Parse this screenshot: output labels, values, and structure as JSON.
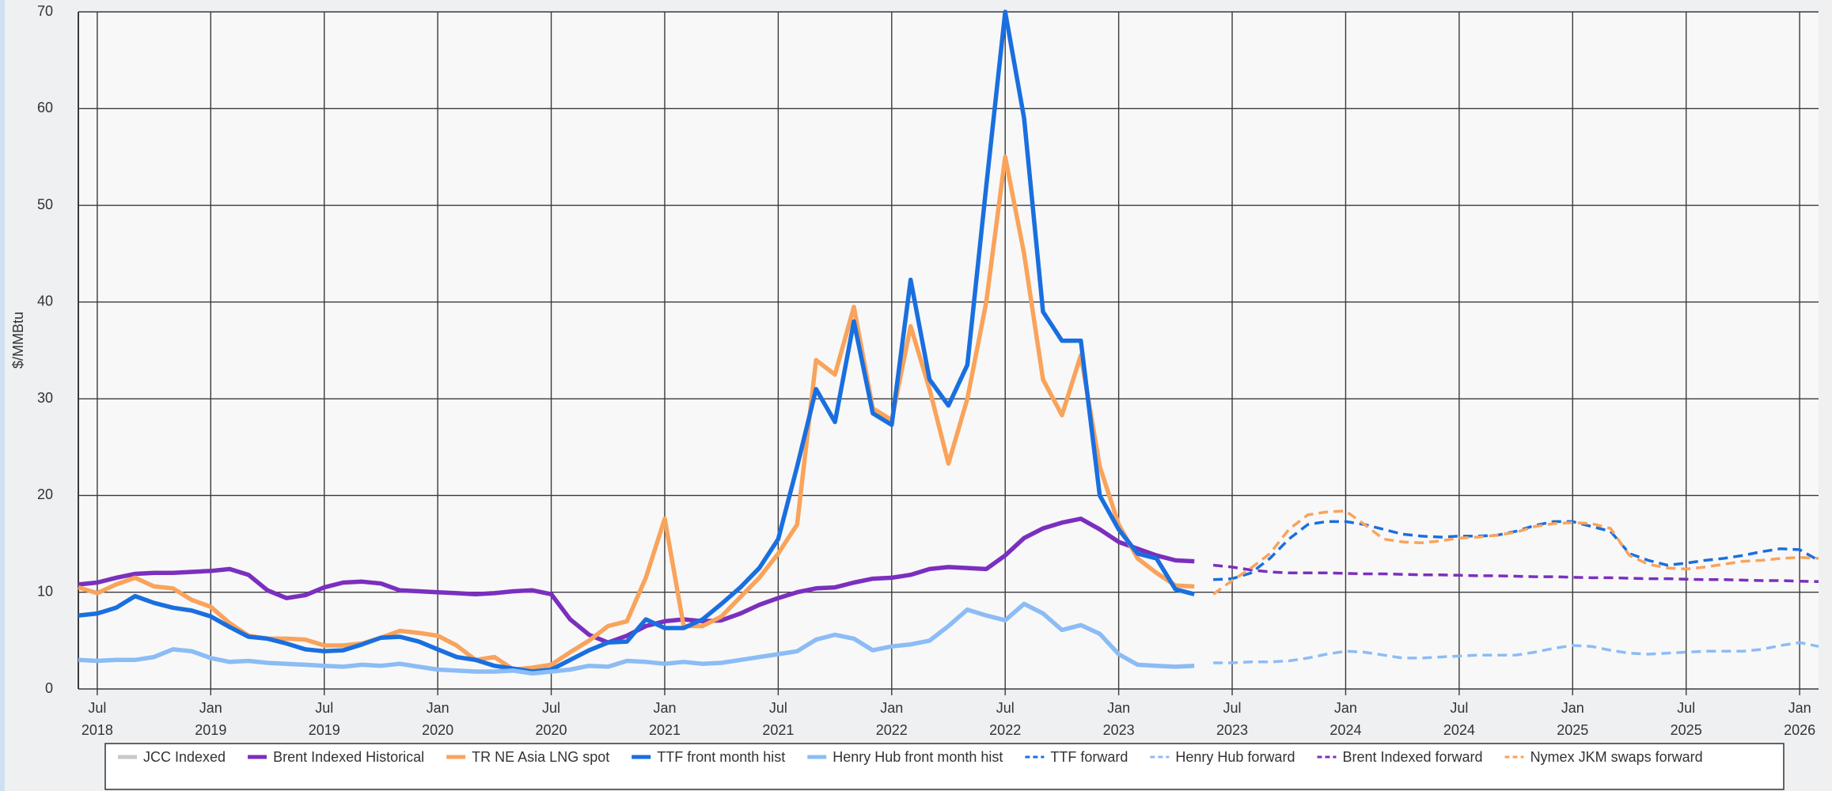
{
  "chart_data": {
    "type": "line",
    "y_label": "$/MMBtu",
    "x": [
      "2018-06",
      "2018-07",
      "2018-08",
      "2018-09",
      "2018-10",
      "2018-11",
      "2018-12",
      "2019-01",
      "2019-02",
      "2019-03",
      "2019-04",
      "2019-05",
      "2019-06",
      "2019-07",
      "2019-08",
      "2019-09",
      "2019-10",
      "2019-11",
      "2019-12",
      "2020-01",
      "2020-02",
      "2020-03",
      "2020-04",
      "2020-05",
      "2020-06",
      "2020-07",
      "2020-08",
      "2020-09",
      "2020-10",
      "2020-11",
      "2020-12",
      "2021-01",
      "2021-02",
      "2021-03",
      "2021-04",
      "2021-05",
      "2021-06",
      "2021-07",
      "2021-08",
      "2021-09",
      "2021-10",
      "2021-11",
      "2021-12",
      "2022-01",
      "2022-02",
      "2022-03",
      "2022-04",
      "2022-05",
      "2022-06",
      "2022-07",
      "2022-08",
      "2022-09",
      "2022-10",
      "2022-11",
      "2022-12",
      "2023-01",
      "2023-02",
      "2023-03",
      "2023-04",
      "2023-05",
      "2023-06",
      "2023-07",
      "2023-08",
      "2023-09",
      "2023-10",
      "2023-11",
      "2023-12",
      "2024-01",
      "2024-02",
      "2024-03",
      "2024-04",
      "2024-05",
      "2024-06",
      "2024-07",
      "2024-08",
      "2024-09",
      "2024-10",
      "2024-11",
      "2024-12",
      "2025-01",
      "2025-02",
      "2025-03",
      "2025-04",
      "2025-05",
      "2025-06",
      "2025-07",
      "2025-08",
      "2025-09",
      "2025-10",
      "2025-11",
      "2025-12",
      "2026-01",
      "2026-02"
    ],
    "xlim": [
      "2018-06",
      "2026-02"
    ],
    "xticks": [
      {
        "value": "2018-07",
        "label": [
          "Jul",
          "2018"
        ]
      },
      {
        "value": "2019-01",
        "label": [
          "Jan",
          "2019"
        ]
      },
      {
        "value": "2019-07",
        "label": [
          "Jul",
          "2019"
        ]
      },
      {
        "value": "2020-01",
        "label": [
          "Jan",
          "2020"
        ]
      },
      {
        "value": "2020-07",
        "label": [
          "Jul",
          "2020"
        ]
      },
      {
        "value": "2021-01",
        "label": [
          "Jan",
          "2021"
        ]
      },
      {
        "value": "2021-07",
        "label": [
          "Jul",
          "2021"
        ]
      },
      {
        "value": "2022-01",
        "label": [
          "Jan",
          "2022"
        ]
      },
      {
        "value": "2022-07",
        "label": [
          "Jul",
          "2022"
        ]
      },
      {
        "value": "2023-01",
        "label": [
          "Jan",
          "2023"
        ]
      },
      {
        "value": "2023-07",
        "label": [
          "Jul",
          "2023"
        ]
      },
      {
        "value": "2024-01",
        "label": [
          "Jan",
          "2024"
        ]
      },
      {
        "value": "2024-07",
        "label": [
          "Jul",
          "2024"
        ]
      },
      {
        "value": "2025-01",
        "label": [
          "Jan",
          "2025"
        ]
      },
      {
        "value": "2025-07",
        "label": [
          "Jul",
          "2025"
        ]
      },
      {
        "value": "2026-01",
        "label": [
          "Jan",
          "2026"
        ]
      }
    ],
    "ylim": [
      0,
      70
    ],
    "yticks": [
      0,
      10,
      20,
      30,
      40,
      50,
      60,
      70
    ],
    "grid": true,
    "legend": "bottom",
    "series": [
      {
        "name": "JCC Indexed",
        "color": "#c8c8c8",
        "dashed": false,
        "visible": false,
        "values": [
          null,
          null,
          null,
          null,
          null,
          null,
          null,
          null,
          null,
          null,
          null,
          null,
          null,
          null,
          null,
          null,
          null,
          null,
          null,
          null,
          null,
          null,
          null,
          null,
          null,
          null,
          null,
          null,
          null,
          null,
          null,
          null,
          null,
          null,
          null,
          null,
          null,
          null,
          null,
          null,
          null,
          null,
          null,
          null,
          null,
          null,
          null,
          null,
          null,
          null,
          null,
          null,
          null,
          null,
          null,
          null,
          null,
          null,
          null,
          null,
          null,
          null,
          null,
          null,
          null,
          null,
          null,
          null,
          null,
          null,
          null,
          null,
          null,
          null,
          null,
          null,
          null,
          null,
          null,
          null,
          null,
          null,
          null,
          null,
          null,
          null,
          null,
          null,
          null,
          null,
          null,
          null,
          null
        ]
      },
      {
        "name": "Brent Indexed Historical",
        "color": "#7b2fbe",
        "dashed": false,
        "visible": true,
        "values": [
          10.8,
          11.0,
          11.5,
          11.9,
          12.0,
          12.0,
          12.1,
          12.2,
          12.4,
          11.8,
          10.2,
          9.4,
          9.7,
          10.5,
          11.0,
          11.1,
          10.9,
          10.2,
          10.1,
          10.0,
          9.9,
          9.8,
          9.9,
          10.1,
          10.2,
          9.8,
          7.2,
          5.6,
          4.8,
          5.5,
          6.5,
          7.0,
          7.2,
          7.0,
          7.1,
          7.8,
          8.7,
          9.4,
          10.0,
          10.4,
          10.5,
          11.0,
          11.4,
          11.5,
          11.8,
          12.4,
          12.6,
          12.5,
          12.4,
          13.8,
          15.6,
          16.6,
          17.2,
          17.6,
          16.5,
          15.2,
          14.5,
          13.8,
          13.3,
          13.2,
          null,
          null,
          null,
          null,
          null,
          null,
          null,
          null,
          null,
          null,
          null,
          null,
          null,
          null,
          null,
          null,
          null,
          null,
          null,
          null,
          null,
          null,
          null,
          null,
          null,
          null,
          null,
          null,
          null,
          null,
          null,
          null,
          null
        ]
      },
      {
        "name": "TR NE Asia LNG spot",
        "color": "#f9a35b",
        "dashed": false,
        "visible": true,
        "values": [
          10.5,
          9.9,
          10.8,
          11.5,
          10.6,
          10.4,
          9.2,
          8.5,
          6.8,
          5.5,
          5.2,
          5.2,
          5.1,
          4.5,
          4.5,
          4.7,
          5.3,
          6.0,
          5.8,
          5.5,
          4.5,
          3.0,
          3.3,
          2.0,
          2.2,
          2.5,
          3.8,
          5.0,
          6.5,
          7.0,
          11.5,
          17.6,
          6.5,
          6.5,
          7.5,
          9.5,
          11.5,
          14,
          17,
          34,
          32.5,
          39.5,
          29,
          27.8,
          37.5,
          31,
          23.3,
          30,
          40,
          55,
          45,
          32,
          28.3,
          34.5,
          23,
          17,
          13.5,
          12,
          10.7,
          10.6,
          null,
          null,
          null,
          null,
          null,
          null,
          null,
          null,
          null,
          null,
          null,
          null,
          null,
          null,
          null,
          null,
          null,
          null,
          null,
          null,
          null,
          null,
          null,
          null,
          null,
          null,
          null,
          null,
          null,
          null,
          null,
          null,
          null
        ]
      },
      {
        "name": "TTF front month hist",
        "color": "#1a6fdf",
        "dashed": false,
        "visible": true,
        "values": [
          7.6,
          7.8,
          8.4,
          9.6,
          8.9,
          8.4,
          8.1,
          7.5,
          6.4,
          5.4,
          5.2,
          4.7,
          4.1,
          3.9,
          4.0,
          4.6,
          5.3,
          5.4,
          4.9,
          4.1,
          3.3,
          3.0,
          2.4,
          2.1,
          1.8,
          2.0,
          3.0,
          4.0,
          4.8,
          4.9,
          7.2,
          6.3,
          6.3,
          7.2,
          8.8,
          10.5,
          12.5,
          15.5,
          23,
          31,
          27.6,
          38,
          28.5,
          27.3,
          42.3,
          32,
          29.3,
          33.5,
          52,
          70,
          59,
          39,
          36,
          36,
          20,
          16.5,
          14,
          13.5,
          10.3,
          9.8,
          null,
          null,
          null,
          null,
          null,
          null,
          null,
          null,
          null,
          null,
          null,
          null,
          null,
          null,
          null,
          null,
          null,
          null,
          null,
          null,
          null,
          null,
          null,
          null,
          null,
          null,
          null,
          null,
          null,
          null,
          null,
          null,
          null
        ]
      },
      {
        "name": "Henry Hub front month hist",
        "color": "#8bbcf5",
        "dashed": false,
        "visible": true,
        "values": [
          3.0,
          2.9,
          3.0,
          3.0,
          3.3,
          4.1,
          3.9,
          3.2,
          2.8,
          2.9,
          2.7,
          2.6,
          2.5,
          2.4,
          2.3,
          2.5,
          2.4,
          2.6,
          2.3,
          2.0,
          1.9,
          1.8,
          1.8,
          1.9,
          1.6,
          1.8,
          2.0,
          2.4,
          2.3,
          2.9,
          2.8,
          2.6,
          2.8,
          2.6,
          2.7,
          3.0,
          3.3,
          3.6,
          3.9,
          5.1,
          5.6,
          5.2,
          4.0,
          4.4,
          4.6,
          5.0,
          6.5,
          8.2,
          7.6,
          7.1,
          8.8,
          7.8,
          6.1,
          6.6,
          5.7,
          3.6,
          2.5,
          2.4,
          2.3,
          2.4,
          null,
          null,
          null,
          null,
          null,
          null,
          null,
          null,
          null,
          null,
          null,
          null,
          null,
          null,
          null,
          null,
          null,
          null,
          null,
          null,
          null,
          null,
          null,
          null,
          null,
          null,
          null,
          null,
          null,
          null,
          null,
          null,
          null
        ]
      },
      {
        "name": "TTF forward",
        "color": "#1a6fdf",
        "dashed": true,
        "visible": true,
        "values": [
          null,
          null,
          null,
          null,
          null,
          null,
          null,
          null,
          null,
          null,
          null,
          null,
          null,
          null,
          null,
          null,
          null,
          null,
          null,
          null,
          null,
          null,
          null,
          null,
          null,
          null,
          null,
          null,
          null,
          null,
          null,
          null,
          null,
          null,
          null,
          null,
          null,
          null,
          null,
          null,
          null,
          null,
          null,
          null,
          null,
          null,
          null,
          null,
          null,
          null,
          null,
          null,
          null,
          null,
          null,
          null,
          null,
          null,
          null,
          null,
          11.3,
          11.4,
          12,
          13.5,
          15.5,
          17,
          17.3,
          17.3,
          17.0,
          16.5,
          16.0,
          15.8,
          15.7,
          15.8,
          15.8,
          15.9,
          16.3,
          16.9,
          17.3,
          17.3,
          16.8,
          16.3,
          14,
          13.3,
          12.8,
          13,
          13.3,
          13.5,
          13.8,
          14.2,
          14.5,
          14.4,
          13.3
        ]
      },
      {
        "name": "Henry Hub forward",
        "color": "#8bbcf5",
        "dashed": true,
        "visible": true,
        "values": [
          null,
          null,
          null,
          null,
          null,
          null,
          null,
          null,
          null,
          null,
          null,
          null,
          null,
          null,
          null,
          null,
          null,
          null,
          null,
          null,
          null,
          null,
          null,
          null,
          null,
          null,
          null,
          null,
          null,
          null,
          null,
          null,
          null,
          null,
          null,
          null,
          null,
          null,
          null,
          null,
          null,
          null,
          null,
          null,
          null,
          null,
          null,
          null,
          null,
          null,
          null,
          null,
          null,
          null,
          null,
          null,
          null,
          null,
          null,
          null,
          2.7,
          2.7,
          2.8,
          2.8,
          2.9,
          3.2,
          3.6,
          3.9,
          3.8,
          3.5,
          3.2,
          3.2,
          3.3,
          3.4,
          3.5,
          3.5,
          3.5,
          3.8,
          4.2,
          4.5,
          4.4,
          4.0,
          3.7,
          3.6,
          3.7,
          3.8,
          3.9,
          3.9,
          3.9,
          4.1,
          4.5,
          4.8,
          4.4
        ]
      },
      {
        "name": "Brent Indexed forward",
        "color": "#7b2fbe",
        "dashed": true,
        "visible": true,
        "values": [
          null,
          null,
          null,
          null,
          null,
          null,
          null,
          null,
          null,
          null,
          null,
          null,
          null,
          null,
          null,
          null,
          null,
          null,
          null,
          null,
          null,
          null,
          null,
          null,
          null,
          null,
          null,
          null,
          null,
          null,
          null,
          null,
          null,
          null,
          null,
          null,
          null,
          null,
          null,
          null,
          null,
          null,
          null,
          null,
          null,
          null,
          null,
          null,
          null,
          null,
          null,
          null,
          null,
          null,
          null,
          null,
          null,
          null,
          null,
          null,
          12.8,
          12.6,
          12.3,
          12.1,
          12.0,
          12.0,
          12.0,
          11.95,
          11.9,
          11.9,
          11.85,
          11.8,
          11.8,
          11.75,
          11.7,
          11.7,
          11.65,
          11.6,
          11.6,
          11.55,
          11.5,
          11.5,
          11.45,
          11.4,
          11.4,
          11.35,
          11.3,
          11.3,
          11.25,
          11.2,
          11.2,
          11.15,
          11.1
        ]
      },
      {
        "name": "Nymex JKM swaps forward",
        "color": "#f9a35b",
        "dashed": true,
        "visible": true,
        "values": [
          null,
          null,
          null,
          null,
          null,
          null,
          null,
          null,
          null,
          null,
          null,
          null,
          null,
          null,
          null,
          null,
          null,
          null,
          null,
          null,
          null,
          null,
          null,
          null,
          null,
          null,
          null,
          null,
          null,
          null,
          null,
          null,
          null,
          null,
          null,
          null,
          null,
          null,
          null,
          null,
          null,
          null,
          null,
          null,
          null,
          null,
          null,
          null,
          null,
          null,
          null,
          null,
          null,
          null,
          null,
          null,
          null,
          null,
          null,
          null,
          9.8,
          11.2,
          12.5,
          14,
          16.5,
          18,
          18.3,
          18.4,
          17,
          15.5,
          15.2,
          15.1,
          15.3,
          15.6,
          15.7,
          15.9,
          16.2,
          16.8,
          17.1,
          17.2,
          17.1,
          16.6,
          13.8,
          12.9,
          12.5,
          12.4,
          12.6,
          12.9,
          13.2,
          13.3,
          13.5,
          13.6,
          13.5
        ]
      }
    ]
  }
}
